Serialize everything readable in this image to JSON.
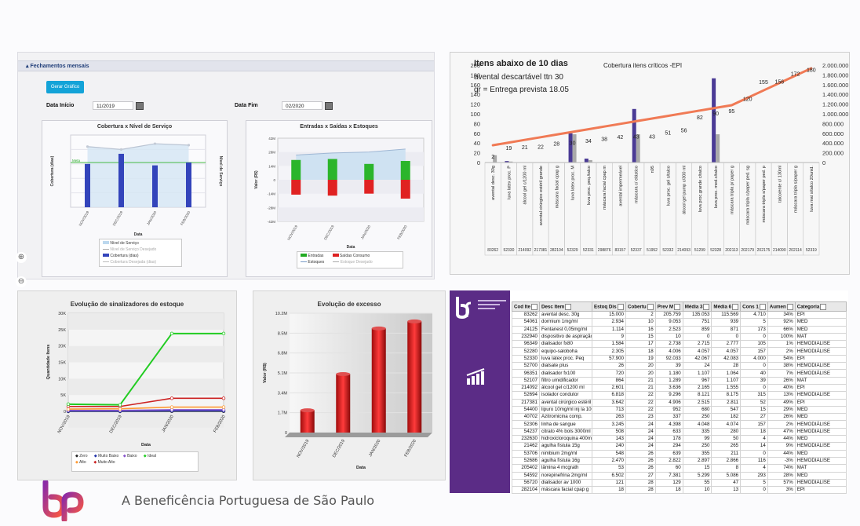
{
  "panel_top_left": {
    "header": "Fechamentos mensais",
    "generate_button": "Gerar Gráfico",
    "start_label": "Data Início",
    "start_value": "11/2019",
    "end_label": "Data Fim",
    "end_value": "02/2020",
    "months": [
      "NOV/2019",
      "DEC/2019",
      "JAN/2020",
      "FEB/2020"
    ],
    "x_label": "Data",
    "chart_coverage": {
      "title": "Cobertura x Nível de Serviço",
      "ylabel": "Cobertura (dias)",
      "y2label": "Nível de Serviço",
      "legend": [
        "Nível de Serviço",
        "Nível de Serviço Desejado",
        "Cobertura (dias)",
        "Cobertura Desejada (dias)"
      ],
      "meta_label": "Meta"
    },
    "chart_flows": {
      "title": "Entradas x Saídas x Estoques",
      "ylabel": "Valor (R$)",
      "yticks": [
        "42M",
        "28M",
        "14M",
        "0",
        "-14M",
        "-28M",
        "-42M"
      ],
      "legend": [
        "Entradas",
        "Saídas Consumo",
        "Estoques",
        "Estoque Desejado"
      ]
    }
  },
  "panel_top_right": {
    "annotation": [
      "Itens abaixo de 10 dias",
      "avental descartável ttn 30",
      "gr = Entrega prevista 18.05"
    ],
    "title": "Cobertura itens críticos -EPI",
    "yticks_left": [
      "200",
      "180",
      "160",
      "140",
      "120",
      "100",
      "80",
      "60",
      "40",
      "20",
      "0"
    ],
    "yticks_right": [
      "2.000.000",
      "1.800.000",
      "1.600.000",
      "1.400.000",
      "1.200.000",
      "1.000.000",
      "800.000",
      "600.000",
      "400.000",
      "200.000",
      "0"
    ],
    "point_labels": [
      "2",
      "19",
      "21",
      "22",
      "28",
      "30",
      "34",
      "38",
      "42",
      "43",
      "43",
      "51",
      "56",
      "82",
      "90",
      "95",
      "120",
      "155",
      "156",
      "172",
      "180"
    ],
    "items": [
      "avental desc. 30g",
      "luva latex proc. P",
      "álcool gel c/1200 ml",
      "avental cirúrgico estéril grande",
      "máscara facial cpap g",
      "luva latex proc. M",
      "luva proc. peq./talco",
      "máscara facial cpap m",
      "avental impermeável",
      "máscara c/ elástico",
      "n95",
      "luva proc. gel s/talco",
      "álcool gel pump c/300 ml",
      "luva proc.grande c/talco",
      "luva proc. med.c/talco",
      "máscara tripla p/ paper g",
      "máscara tripla c/paper ped. sg",
      "máscara tripla s/paper ped. p",
      "talco/ente c/ 130ml",
      "máscara tripla s/paper g",
      "luva mat s/talco 20unid."
    ],
    "codes": [
      "83262",
      "52330",
      "214092",
      "217381",
      "282104",
      "52329",
      "52331",
      "298876",
      "83157",
      "52337",
      "51952",
      "52332",
      "214093",
      "51299",
      "52328",
      "202113",
      "202179",
      "202175",
      "214090",
      "202114",
      "52319"
    ]
  },
  "chart_data": [
    {
      "type": "bar",
      "title": "Cobertura x Nível de Serviço",
      "categories": [
        "NOV/2019",
        "DEC/2019",
        "JAN/2020",
        "FEB/2020"
      ],
      "series": [
        {
          "name": "Cobertura (dias)",
          "values": [
            30,
            37,
            29,
            31
          ]
        },
        {
          "name": "Nível de Serviço",
          "values": [
            42,
            40,
            44,
            43
          ]
        }
      ],
      "ylabel": "Cobertura (dias)",
      "xlabel": "Data"
    },
    {
      "type": "bar",
      "title": "Entradas x Saídas x Estoques",
      "categories": [
        "NOV/2019",
        "DEC/2019",
        "JAN/2020",
        "FEB/2020"
      ],
      "series": [
        {
          "name": "Entradas",
          "values": [
            20,
            21,
            16,
            19
          ]
        },
        {
          "name": "Saídas Consumo",
          "values": [
            -15,
            -16,
            -14,
            -19
          ]
        },
        {
          "name": "Estoques",
          "values": [
            25,
            27,
            28,
            31
          ]
        }
      ],
      "ylabel": "Valor (R$)",
      "xlabel": "Data",
      "ylim": [
        -42,
        42
      ]
    },
    {
      "type": "bar",
      "title": "Cobertura itens críticos -EPI",
      "categories": [
        "avental desc. 30g",
        "luva latex proc. P",
        "álcool gel c/1200 ml",
        "avental cirúrgico estéril grande",
        "máscara facial cpap g",
        "luva latex proc. M",
        "luva proc. peq./talco",
        "máscara facial cpap m",
        "avental impermeável",
        "máscara c/ elástico",
        "n95",
        "luva proc. gel s/talco",
        "álcool gel pump c/300 ml",
        "luva proc.grande c/talco",
        "luva proc. med.c/talco",
        "máscara tripla p/ paper g",
        "máscara tripla c/paper ped. sg",
        "máscara tripla s/paper ped. p",
        "talco/ente c/ 130ml",
        "máscara tripla s/paper g",
        "luva mat s/talco 20unid."
      ],
      "series": [
        {
          "name": "cobertura",
          "values": [
            2,
            19,
            21,
            22,
            28,
            30,
            34,
            38,
            42,
            43,
            43,
            51,
            56,
            82,
            90,
            95,
            120,
            155,
            156,
            172,
            180
          ]
        },
        {
          "name": "bar_a",
          "values": [
            0,
            3,
            0,
            0,
            0,
            60,
            8,
            0,
            0,
            110,
            0,
            0,
            0,
            0,
            173,
            0,
            0,
            0,
            0,
            0,
            0
          ]
        },
        {
          "name": "bar_b",
          "values": [
            15,
            2,
            0,
            0,
            0,
            58,
            5,
            0,
            0,
            58,
            0,
            0,
            0,
            0,
            58,
            0,
            0,
            0,
            0,
            0,
            0
          ]
        }
      ],
      "ylim": [
        0,
        200
      ],
      "y2lim": [
        0,
        2000000
      ]
    },
    {
      "type": "line",
      "title": "Evolução de sinalizadores de estoque",
      "categories": [
        "NOV/2019",
        "DEC/2019",
        "JAN/2020",
        "FEB/2020"
      ],
      "series": [
        {
          "name": "Ideal",
          "values": [
            2200,
            2000,
            23800,
            23800
          ]
        },
        {
          "name": "Muito Alto",
          "values": [
            1500,
            1500,
            4000,
            4000
          ]
        },
        {
          "name": "Alto",
          "values": [
            700,
            800,
            1300,
            1300
          ]
        },
        {
          "name": "Baixo",
          "values": [
            300,
            300,
            500,
            500
          ]
        },
        {
          "name": "Muito Baixo",
          "values": [
            100,
            100,
            200,
            200
          ]
        },
        {
          "name": "Zero",
          "values": [
            0,
            0,
            50,
            50
          ]
        }
      ],
      "ylabel": "Quantidade Itens",
      "xlabel": "Data",
      "ylim": [
        0,
        30000
      ]
    },
    {
      "type": "bar",
      "title": "Evolução de excesso",
      "categories": [
        "NOV/2019",
        "DEC/2019",
        "JAN/2020",
        "FEB/2020"
      ],
      "values": [
        1.9,
        5.0,
        8.9,
        9.5
      ],
      "ylabel": "Valor (R$)",
      "xlabel": "Data",
      "ylim": [
        0,
        10.2
      ]
    }
  ],
  "panel_bottom_left": {
    "title": "Evolução de sinalizadores de estoque",
    "ylabel": "Quantidade Itens",
    "xlabel": "Data",
    "yticks": [
      "30K",
      "25K",
      "20K",
      "15K",
      "10K",
      "5K",
      "0"
    ],
    "legend": [
      "Zero",
      "Muito Baixo",
      "Baixo",
      "Ideal",
      "Alto",
      "Muito Alto"
    ],
    "colors": {
      "Zero": "#222222",
      "Muito Baixo": "#2233aa",
      "Baixo": "#8855cc",
      "Ideal": "#22cc22",
      "Alto": "#ff9a33",
      "Muito Alto": "#cc2222"
    }
  },
  "panel_bottom_mid": {
    "title": "Evolução de excesso",
    "ylabel": "Valor (R$)",
    "xlabel": "Data",
    "yticks": [
      "10.2M",
      "8.5M",
      "6.8M",
      "5.1M",
      "3.4M",
      "1.7M",
      "0"
    ]
  },
  "table": {
    "headers": [
      "Cod Ite",
      "Desc Item",
      "Estoq Dis",
      "Cobertu",
      "Prev M",
      "Média 3",
      "Média 6",
      "Cons 1",
      "Aumen",
      "Categoria"
    ],
    "rows": [
      [
        "83262",
        "avental desc. 30g",
        "15.000",
        "2",
        "205.759",
        "135.053",
        "115.569",
        "4.710",
        "34%",
        "EPI"
      ],
      [
        "54061",
        "dormium 1mg/ml",
        "2.934",
        "10",
        "9.053",
        "751",
        "939",
        "5",
        "92%",
        "MED"
      ],
      [
        "24125",
        "Fentanest 0,05mg/ml",
        "1.114",
        "16",
        "2.523",
        "859",
        "871",
        "173",
        "66%",
        "MED"
      ],
      [
        "232940",
        "dispositivo de aspiração",
        "9",
        "15",
        "10",
        "0",
        "0",
        "0",
        "100%",
        "MAT"
      ],
      [
        "96349",
        "dialisador fx80",
        "1.584",
        "17",
        "2.738",
        "2.715",
        "2.777",
        "105",
        "1%",
        "HEMODIÁLISE"
      ],
      [
        "52280",
        "equipo-saloboha",
        "2.305",
        "18",
        "4.006",
        "4.057",
        "4.057",
        "157",
        "2%",
        "HEMODIÁLISE"
      ],
      [
        "52330",
        "luva latex proc. Peq",
        "57.900",
        "19",
        "92.033",
        "42.067",
        "42.083",
        "4.000",
        "54%",
        "EPI"
      ],
      [
        "52700",
        "dialsate plus",
        "26",
        "20",
        "39",
        "24",
        "28",
        "0",
        "38%",
        "HEMODIÁLISE"
      ],
      [
        "96351",
        "dialisador fx100",
        "720",
        "20",
        "1.180",
        "1.107",
        "1.064",
        "40",
        "7%",
        "HEMODIÁLISE"
      ],
      [
        "52107",
        "filtro umidificador",
        "864",
        "21",
        "1.289",
        "967",
        "1.107",
        "39",
        "26%",
        "MAT"
      ],
      [
        "214092",
        "álcool gel c/1200 ml",
        "2.601",
        "21",
        "3.636",
        "2.165",
        "1.555",
        "0",
        "40%",
        "EPI"
      ],
      [
        "52694",
        "isolador condutor",
        "6.818",
        "22",
        "9.296",
        "8.121",
        "8.175",
        "315",
        "13%",
        "HEMODIÁLISE"
      ],
      [
        "217381",
        "avental cirúrgico estéril",
        "3.642",
        "22",
        "4.906",
        "2.515",
        "2.811",
        "52",
        "49%",
        "EPI"
      ],
      [
        "54400",
        "lipuro 10mg/ml inj la 100",
        "713",
        "22",
        "952",
        "680",
        "547",
        "15",
        "29%",
        "MED"
      ],
      [
        "40702",
        "Azitromicina comp.",
        "263",
        "23",
        "337",
        "250",
        "182",
        "27",
        "26%",
        "MED"
      ],
      [
        "52306",
        "linha de sangue",
        "3.245",
        "24",
        "4.398",
        "4.048",
        "4.074",
        "157",
        "2%",
        "HEMODIÁLISE"
      ],
      [
        "54237",
        "citrato 4% bols 3000ml",
        "508",
        "24",
        "633",
        "335",
        "280",
        "18",
        "47%",
        "HEMODIÁLISE"
      ],
      [
        "232630",
        "hidroxicloroquina 400m",
        "143",
        "24",
        "178",
        "99",
        "50",
        "4",
        "44%",
        "MED"
      ],
      [
        "21462",
        "agulha fístula 15g",
        "240",
        "24",
        "294",
        "250",
        "265",
        "14",
        "9%",
        "HEMODIÁLISE"
      ],
      [
        "53706",
        "nimbium 2mg/ml",
        "548",
        "26",
        "639",
        "355",
        "211",
        "0",
        "44%",
        "MED"
      ],
      [
        "52686",
        "agulha fístula 16g",
        "2.470",
        "26",
        "2.822",
        "2.897",
        "2.866",
        "116",
        "-3%",
        "HEMODIÁLISE"
      ],
      [
        "205402",
        "lâmina 4 mcgrath",
        "53",
        "26",
        "60",
        "15",
        "8",
        "4",
        "74%",
        "MAT"
      ],
      [
        "54592",
        "norepinefrina 2mg/ml",
        "6.502",
        "27",
        "7.381",
        "5.299",
        "5.086",
        "293",
        "28%",
        "MED"
      ],
      [
        "56720",
        "dialisador av 1000",
        "121",
        "28",
        "129",
        "55",
        "47",
        "5",
        "57%",
        "HEMODIÁLISE"
      ],
      [
        "282104",
        "máscara facial cpap g",
        "18",
        "28",
        "18",
        "10",
        "13",
        "0",
        "3%",
        "EPI"
      ]
    ]
  },
  "footer_text": "A Beneficência Portuguesa de São Paulo"
}
